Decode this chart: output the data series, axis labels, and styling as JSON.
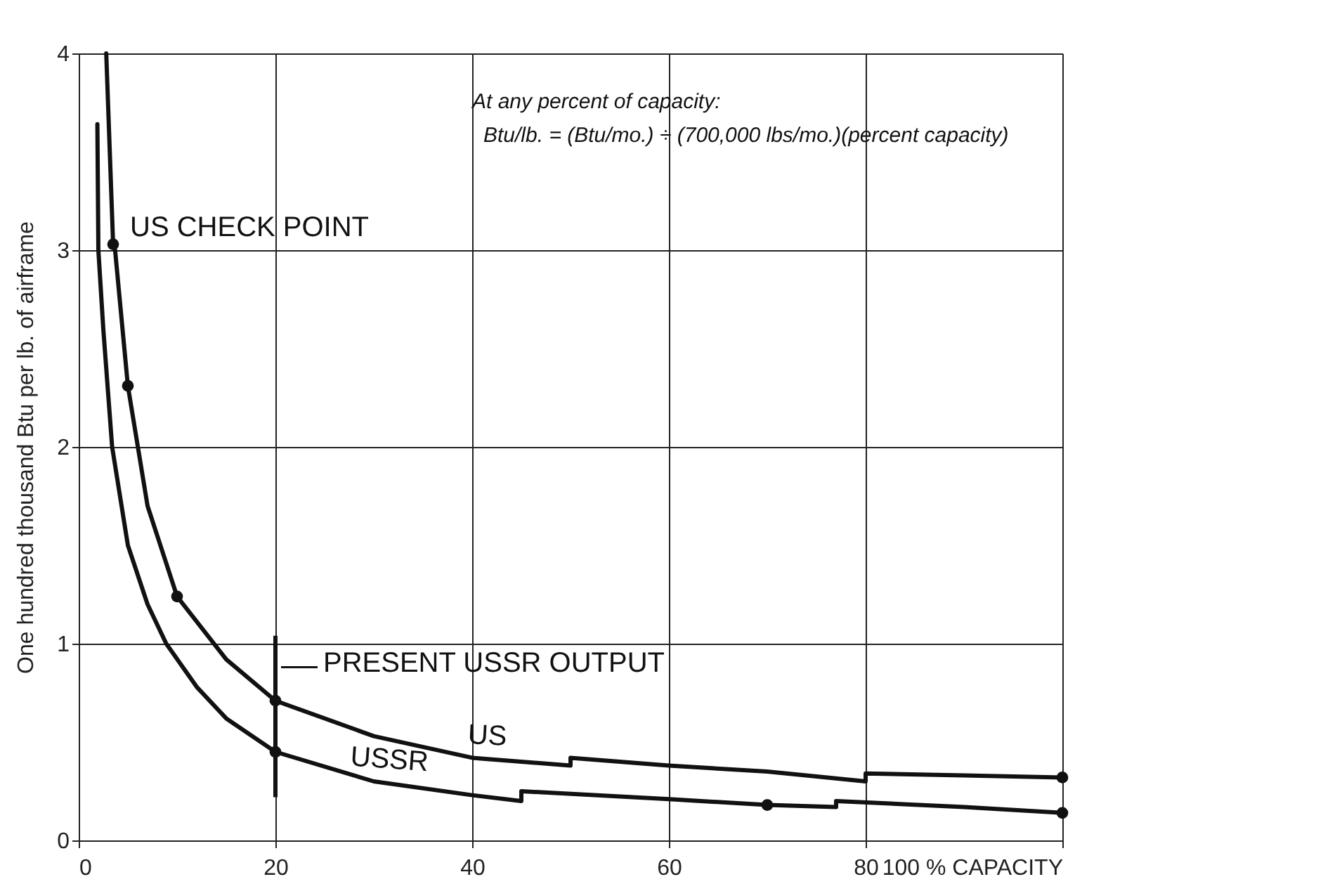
{
  "chart_data": {
    "type": "line",
    "ylabel": "One hundred thousand Btu per lb. of airframe",
    "xlim": [
      0,
      100
    ],
    "xticks": [
      0,
      20,
      40,
      60,
      80,
      {
        "value": 100,
        "label": "100 % CAPACITY"
      }
    ],
    "ylim": [
      0,
      4
    ],
    "yticks": [
      0,
      1,
      2,
      3,
      4
    ],
    "grid": true,
    "marker": "none",
    "line_style": "solid",
    "series": [
      {
        "name": "US",
        "color": "#111111",
        "x": [
          2.8,
          3.5,
          3.7,
          5,
          7,
          10,
          15,
          20,
          30,
          40,
          50,
          50,
          60,
          70,
          80,
          80,
          90,
          100
        ],
        "values": [
          4.0,
          3.03,
          3.0,
          2.31,
          1.7,
          1.24,
          0.92,
          0.71,
          0.53,
          0.42,
          0.38,
          0.42,
          0.38,
          0.35,
          0.3,
          0.34,
          0.33,
          0.32
        ]
      },
      {
        "name": "USSR",
        "color": "#111111",
        "x": [
          1.9,
          2.0,
          2.5,
          3.4,
          5,
          7,
          8.9,
          12,
          15,
          20,
          30,
          40,
          45,
          45,
          60,
          70,
          77,
          77,
          90,
          100
        ],
        "values": [
          3.64,
          3.0,
          2.6,
          2.0,
          1.5,
          1.2,
          1.0,
          0.78,
          0.62,
          0.45,
          0.3,
          0.23,
          0.2,
          0.25,
          0.21,
          0.18,
          0.17,
          0.2,
          0.17,
          0.14
        ]
      },
      {
        "type": "scatter",
        "color": "#111111",
        "marker": "circle",
        "x": [
          3.5,
          5,
          10,
          20,
          100
        ],
        "values": [
          3.03,
          2.31,
          1.24,
          0.71,
          0.32
        ]
      },
      {
        "type": "scatter",
        "color": "#111111",
        "marker": "circle",
        "x": [
          20,
          70,
          100
        ],
        "values": [
          0.45,
          0.18,
          0.14
        ]
      }
    ],
    "ref_lines": [
      {
        "axis": "x",
        "value": 20,
        "label": "PRESENT USSR OUTPUT"
      }
    ],
    "annotations": [
      {
        "text": "US CHECK POINT",
        "x": 3.5,
        "y": 3.03
      },
      "At any percent of capacity:",
      "Btu/lb. = (Btu/mo.) ÷ (700,000 lbs/mo.)(percent capacity)"
    ]
  }
}
